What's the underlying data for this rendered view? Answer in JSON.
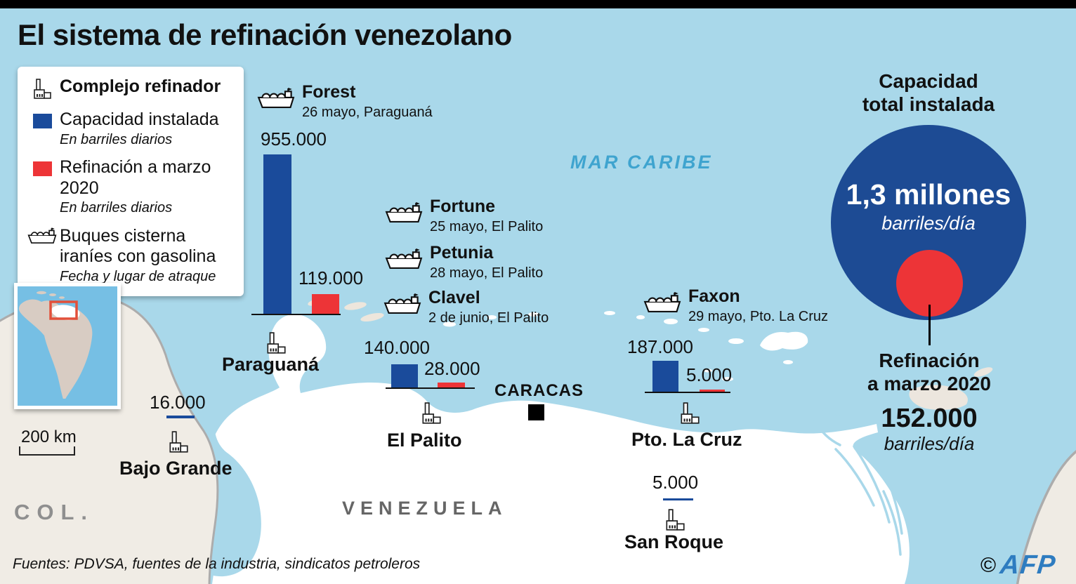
{
  "title": "El sistema de refinación venezolano",
  "colors": {
    "sea": "#A9D8EA",
    "land_venezuela": "#FFFFFF",
    "land_neighbor": "#F0ECE5",
    "capacity_blue": "#1A4B9B",
    "refining_red": "#ED3437",
    "sea_label_blue": "#3FA4CF",
    "afp_blue": "#2E7CC0"
  },
  "legend": {
    "refinery_label": "Complejo refinador",
    "capacity_label": "Capacidad instalada",
    "capacity_sub": "En barriles diarios",
    "refining_label": "Refinación a marzo 2020",
    "refining_sub": "En barriles diarios",
    "tanker_label_line1": "Buques cisterna",
    "tanker_label_line2": "iraníes con gasolina",
    "tanker_sub": "Fecha y lugar de atraque"
  },
  "map": {
    "sea_label": "MAR CARIBE",
    "country_label": "VENEZUELA",
    "neighbor_label": "COL.",
    "capital_label": "CARACAS",
    "scale_label": "200 km"
  },
  "ships": [
    {
      "name": "Forest",
      "detail": "26 mayo, Paraguaná"
    },
    {
      "name": "Fortune",
      "detail": "25 mayo, El Palito"
    },
    {
      "name": "Petunia",
      "detail": "28 mayo, El Palito"
    },
    {
      "name": "Clavel",
      "detail": "2 de junio, El Palito"
    },
    {
      "name": "Faxon",
      "detail": "29 mayo, Pto. La Cruz"
    }
  ],
  "refineries": [
    {
      "name": "Paraguaná",
      "capacity": 955000,
      "capacity_label": "955.000",
      "refining": 119000,
      "refining_label": "119.000"
    },
    {
      "name": "Bajo Grande",
      "capacity": 16000,
      "capacity_label": "16.000"
    },
    {
      "name": "El Palito",
      "capacity": 140000,
      "capacity_label": "140.000",
      "refining": 28000,
      "refining_label": "28.000"
    },
    {
      "name": "Pto. La Cruz",
      "capacity": 187000,
      "capacity_label": "187.000",
      "refining": 5000,
      "refining_label": "5.000"
    },
    {
      "name": "San Roque",
      "capacity": 5000,
      "capacity_label": "5.000"
    }
  ],
  "summary": {
    "capacity_title_line1": "Capacidad",
    "capacity_title_line2": "total instalada",
    "total_value": "1,3 millones",
    "total_unit": "barriles/día",
    "refining_title_line1": "Refinación",
    "refining_title_line2": "a marzo 2020",
    "refining_value": "152.000",
    "refining_unit": "barriles/día"
  },
  "footer": {
    "sources": "Fuentes: PDVSA, fuentes de la industria, sindicatos petroleros",
    "credit_mark": "©",
    "credit_name": "AFP"
  },
  "chart_data": [
    {
      "type": "bar",
      "title": "Capacidad instalada vs refinación a marzo 2020",
      "ylabel": "Barriles diarios",
      "categories": [
        "Paraguaná",
        "Bajo Grande",
        "El Palito",
        "Pto. La Cruz",
        "San Roque"
      ],
      "series": [
        {
          "name": "Capacidad instalada",
          "values": [
            955000,
            16000,
            140000,
            187000,
            5000
          ]
        },
        {
          "name": "Refinación a marzo 2020",
          "values": [
            119000,
            null,
            28000,
            5000,
            null
          ]
        }
      ],
      "legend_position": "top-left",
      "grid": false
    },
    {
      "type": "pie",
      "title": "Capacidad total instalada vs refinación a marzo 2020",
      "labels": [
        "Capacidad total instalada",
        "Refinación a marzo 2020"
      ],
      "values": [
        1300000,
        152000
      ],
      "unit": "barriles/día",
      "note": "círculos proporcionales"
    }
  ]
}
